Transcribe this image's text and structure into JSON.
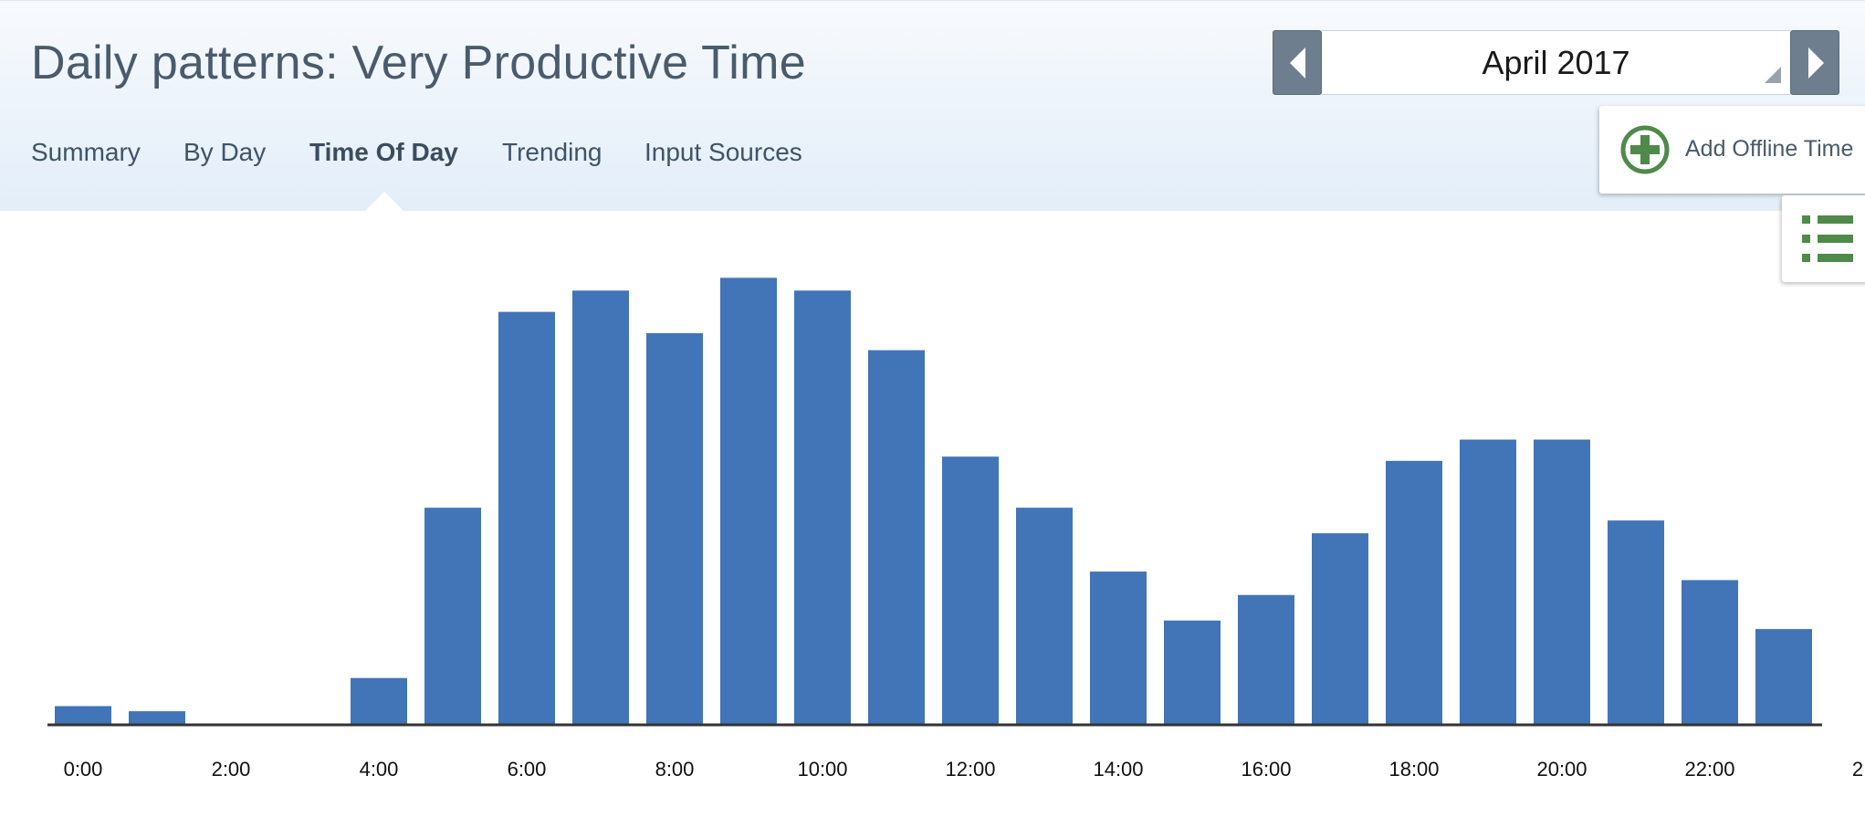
{
  "header": {
    "title": "Daily patterns: Very Productive Time",
    "tabs": [
      {
        "label": "Summary",
        "active": false
      },
      {
        "label": "By Day",
        "active": false
      },
      {
        "label": "Time Of Day",
        "active": true
      },
      {
        "label": "Trending",
        "active": false
      },
      {
        "label": "Input Sources",
        "active": false
      }
    ],
    "month_picker": {
      "value": "April 2017"
    },
    "add_offline_label": "Add Offline Time"
  },
  "icons": {
    "prev": "chevron-left-icon",
    "next": "chevron-right-icon",
    "add": "plus-circle-icon",
    "list": "list-icon"
  },
  "colors": {
    "bar": "#4274b8",
    "accent_green": "#4f8a4a",
    "picker_button": "#6e7e8f"
  },
  "chart_data": {
    "type": "bar",
    "categories": [
      "0:00",
      "1:00",
      "2:00",
      "3:00",
      "4:00",
      "5:00",
      "6:00",
      "7:00",
      "8:00",
      "9:00",
      "10:00",
      "11:00",
      "12:00",
      "13:00",
      "14:00",
      "15:00",
      "16:00",
      "17:00",
      "18:00",
      "19:00",
      "20:00",
      "21:00",
      "22:00",
      "23:00"
    ],
    "values": [
      4.4,
      3.2,
      0,
      0,
      11,
      51,
      97,
      102,
      92,
      105,
      102,
      88,
      63,
      51,
      36,
      24.5,
      30.5,
      45,
      62,
      67,
      67,
      48,
      34,
      22.5
    ],
    "x_tick_labels": [
      "0:00",
      "2:00",
      "4:00",
      "6:00",
      "8:00",
      "10:00",
      "12:00",
      "14:00",
      "16:00",
      "18:00",
      "20:00",
      "22:00",
      "2"
    ],
    "ylim": [
      0,
      110
    ],
    "grid": false,
    "title": "",
    "xlabel": "",
    "ylabel": ""
  }
}
